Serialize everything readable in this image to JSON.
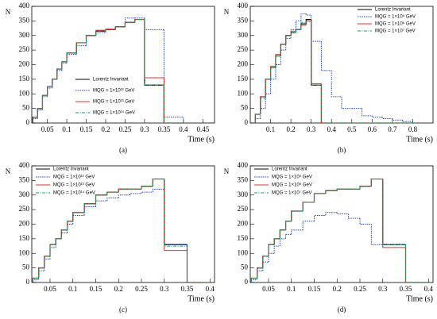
{
  "chart_data": [
    {
      "type": "histogram",
      "caption": "(a)",
      "ylabel": "N",
      "xlabel": "Time (s)",
      "xlim": [
        0.01,
        0.48
      ],
      "xticks": [
        0.05,
        0.1,
        0.15,
        0.2,
        0.25,
        0.3,
        0.35,
        0.4,
        0.45
      ],
      "ylim": [
        0,
        400
      ],
      "yticks": [
        0,
        50,
        100,
        150,
        200,
        250,
        300,
        350,
        400
      ],
      "legend": "center right",
      "bins": [
        0.0125,
        0.025,
        0.0375,
        0.05,
        0.0625,
        0.075,
        0.0875,
        0.1,
        0.125,
        0.15,
        0.175,
        0.2,
        0.225,
        0.25,
        0.275,
        0.3,
        0.35,
        0.4
      ],
      "series": [
        {
          "name": "Lorentz Invariant",
          "color": "#000000",
          "linestyle": "solid",
          "values": [
            20,
            50,
            95,
            125,
            150,
            185,
            210,
            240,
            275,
            300,
            315,
            320,
            330,
            345,
            355,
            130,
            0
          ]
        },
        {
          "name": "MQG = 1×10¹² GeV",
          "color": "#2040d0",
          "linestyle": "dotted",
          "values": [
            15,
            45,
            90,
            120,
            150,
            180,
            205,
            235,
            265,
            300,
            310,
            320,
            330,
            360,
            360,
            320,
            20
          ]
        },
        {
          "name": "MQG = 1×10¹³ GeV",
          "color": "#e03030",
          "linestyle": "solid",
          "values": [
            20,
            50,
            95,
            125,
            150,
            185,
            210,
            240,
            275,
            300,
            318,
            322,
            330,
            345,
            355,
            155,
            0
          ]
        },
        {
          "name": "MQG = 1×10¹⁴ GeV",
          "color": "#10a060",
          "linestyle": "dashdot",
          "values": [
            20,
            50,
            95,
            125,
            150,
            185,
            210,
            240,
            275,
            300,
            315,
            320,
            330,
            345,
            355,
            130,
            0
          ]
        }
      ]
    },
    {
      "type": "histogram",
      "caption": "(b)",
      "ylabel": "N",
      "xlabel": "Time (s)",
      "xlim": [
        0.0,
        0.9
      ],
      "xticks": [
        0.1,
        0.2,
        0.3,
        0.4,
        0.5,
        0.6,
        0.7,
        0.8
      ],
      "ylim": [
        0,
        400
      ],
      "yticks": [
        0,
        50,
        100,
        150,
        200,
        250,
        300,
        350,
        400
      ],
      "legend": "upper right",
      "bins": [
        0.025,
        0.05,
        0.075,
        0.1,
        0.125,
        0.15,
        0.175,
        0.2,
        0.225,
        0.25,
        0.275,
        0.3,
        0.35,
        0.4,
        0.45,
        0.5,
        0.55,
        0.6,
        0.65,
        0.7,
        0.75,
        0.8,
        0.85
      ],
      "series": [
        {
          "name": "Lorentz Invariant",
          "color": "#000000",
          "linestyle": "solid",
          "values": [
            30,
            90,
            150,
            190,
            230,
            270,
            300,
            310,
            320,
            340,
            355,
            130,
            0,
            0,
            0,
            0,
            0,
            0,
            0,
            0,
            0,
            0
          ]
        },
        {
          "name": "MQG = 1×10⁵ GeV",
          "color": "#2040d0",
          "linestyle": "dotted",
          "values": [
            15,
            50,
            100,
            150,
            200,
            250,
            290,
            320,
            350,
            375,
            370,
            280,
            180,
            90,
            50,
            50,
            25,
            20,
            15,
            10,
            5,
            0
          ]
        },
        {
          "name": "MQG = 1×10⁶ GeV",
          "color": "#e03030",
          "linestyle": "solid",
          "values": [
            30,
            90,
            150,
            195,
            235,
            270,
            300,
            315,
            320,
            335,
            350,
            135,
            0,
            0,
            0,
            0,
            0,
            0,
            0,
            0,
            0,
            0
          ]
        },
        {
          "name": "MQG = 1×10⁷ GeV",
          "color": "#10a060",
          "linestyle": "dashdot",
          "values": [
            30,
            85,
            150,
            190,
            230,
            270,
            300,
            310,
            320,
            345,
            350,
            130,
            0,
            0,
            0,
            0,
            0,
            0,
            0,
            0,
            0,
            0
          ]
        }
      ]
    },
    {
      "type": "histogram",
      "caption": "(c)",
      "ylabel": "N",
      "xlabel": "Time (s)",
      "xlim": [
        0.01,
        0.41
      ],
      "xticks": [
        0.05,
        0.1,
        0.15,
        0.2,
        0.25,
        0.3,
        0.35,
        0.4
      ],
      "ylim": [
        0,
        400
      ],
      "yticks": [
        0,
        50,
        100,
        150,
        200,
        250,
        300,
        350,
        400
      ],
      "legend": "upper left",
      "bins": [
        0.0125,
        0.025,
        0.0375,
        0.05,
        0.0625,
        0.075,
        0.0875,
        0.1,
        0.125,
        0.15,
        0.175,
        0.2,
        0.225,
        0.25,
        0.275,
        0.3,
        0.35,
        0.4
      ],
      "series": [
        {
          "name": "Lorentz Invariant",
          "color": "#000000",
          "linestyle": "solid",
          "values": [
            15,
            50,
            90,
            130,
            150,
            180,
            210,
            240,
            270,
            300,
            310,
            320,
            320,
            330,
            355,
            130,
            0
          ]
        },
        {
          "name": "MQG = 1×10¹² GeV",
          "color": "#2040d0",
          "linestyle": "dotted",
          "values": [
            10,
            40,
            80,
            120,
            150,
            170,
            200,
            230,
            260,
            280,
            290,
            300,
            305,
            310,
            320,
            130,
            0
          ]
        },
        {
          "name": "MQG = 1×10¹³ GeV",
          "color": "#e03030",
          "linestyle": "solid",
          "values": [
            15,
            50,
            90,
            130,
            150,
            180,
            210,
            240,
            270,
            300,
            310,
            320,
            320,
            330,
            355,
            110,
            0
          ]
        },
        {
          "name": "MQG = 1×10¹⁴ GeV",
          "color": "#10a060",
          "linestyle": "dashdot",
          "values": [
            15,
            50,
            90,
            130,
            150,
            180,
            210,
            240,
            270,
            300,
            310,
            320,
            320,
            330,
            355,
            125,
            0
          ]
        }
      ]
    },
    {
      "type": "histogram",
      "caption": "(d)",
      "ylabel": "N",
      "xlabel": "Time (s)",
      "xlim": [
        0.01,
        0.41
      ],
      "xticks": [
        0.05,
        0.1,
        0.15,
        0.2,
        0.25,
        0.3,
        0.35,
        0.4
      ],
      "ylim": [
        0,
        400
      ],
      "yticks": [
        0,
        50,
        100,
        150,
        200,
        250,
        300,
        350,
        400
      ],
      "legend": "upper left",
      "bins": [
        0.0125,
        0.025,
        0.0375,
        0.05,
        0.0625,
        0.075,
        0.0875,
        0.1,
        0.125,
        0.15,
        0.175,
        0.2,
        0.225,
        0.25,
        0.275,
        0.3,
        0.35,
        0.4
      ],
      "series": [
        {
          "name": "Lorentz Invariant",
          "color": "#000000",
          "linestyle": "solid",
          "values": [
            15,
            50,
            90,
            130,
            150,
            180,
            210,
            245,
            275,
            305,
            315,
            320,
            320,
            330,
            355,
            130,
            0
          ]
        },
        {
          "name": "MQG = 1×10⁵ GeV",
          "color": "#2040d0",
          "linestyle": "dotted",
          "values": [
            10,
            40,
            70,
            100,
            125,
            150,
            165,
            180,
            210,
            230,
            240,
            235,
            220,
            200,
            130,
            130,
            0
          ]
        },
        {
          "name": "MQG = 1×10⁶ GeV",
          "color": "#e03030",
          "linestyle": "solid",
          "values": [
            15,
            50,
            90,
            130,
            150,
            180,
            210,
            245,
            275,
            305,
            315,
            320,
            320,
            330,
            355,
            120,
            0
          ]
        },
        {
          "name": "MQG = 1×10⁷ GeV",
          "color": "#10a060",
          "linestyle": "dashdot",
          "values": [
            15,
            50,
            90,
            130,
            150,
            180,
            210,
            245,
            275,
            305,
            315,
            320,
            320,
            330,
            355,
            130,
            0
          ]
        }
      ]
    }
  ]
}
